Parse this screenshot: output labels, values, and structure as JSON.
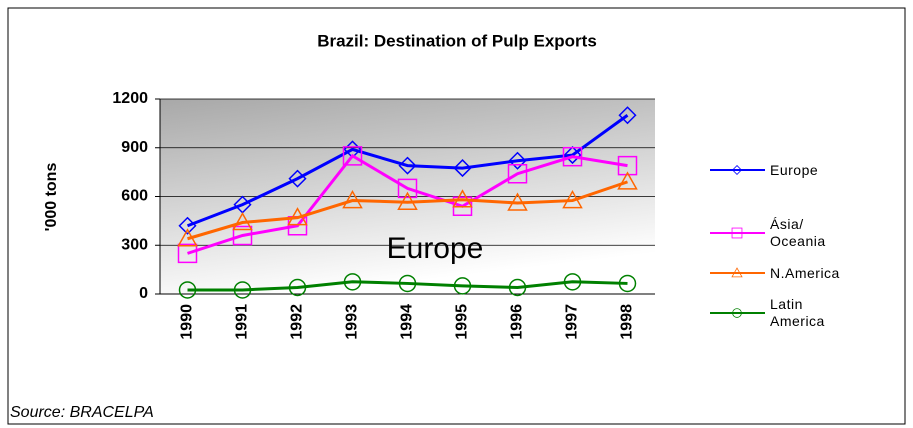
{
  "chart_data": {
    "type": "line",
    "title": "Brazil: Destination of Pulp Exports",
    "y_label": "'000 tons",
    "annotation": "Europe",
    "source": "Source: BRACELPA",
    "categories": [
      "1990",
      "1991",
      "1992",
      "1993",
      "1994",
      "1995",
      "1996",
      "1997",
      "1998"
    ],
    "series": [
      {
        "name": "Europe",
        "color": "#0000ff",
        "marker": "diamond",
        "values": [
          420,
          550,
          710,
          890,
          790,
          775,
          820,
          855,
          1100
        ]
      },
      {
        "name": "Ásia/ Oceania",
        "color": "#ff00ff",
        "marker": "square",
        "values": [
          250,
          360,
          420,
          850,
          650,
          540,
          740,
          845,
          790
        ]
      },
      {
        "name": "N.America",
        "color": "#ff6600",
        "marker": "triangle",
        "values": [
          340,
          440,
          470,
          575,
          565,
          580,
          560,
          575,
          690
        ]
      },
      {
        "name": "Latin America",
        "color": "#008000",
        "marker": "circle",
        "values": [
          25,
          25,
          40,
          75,
          65,
          50,
          40,
          75,
          65
        ]
      }
    ],
    "ylim": [
      0,
      1200
    ],
    "yticks": [
      0,
      300,
      600,
      900,
      1200
    ],
    "grid": true,
    "legend": "right"
  }
}
